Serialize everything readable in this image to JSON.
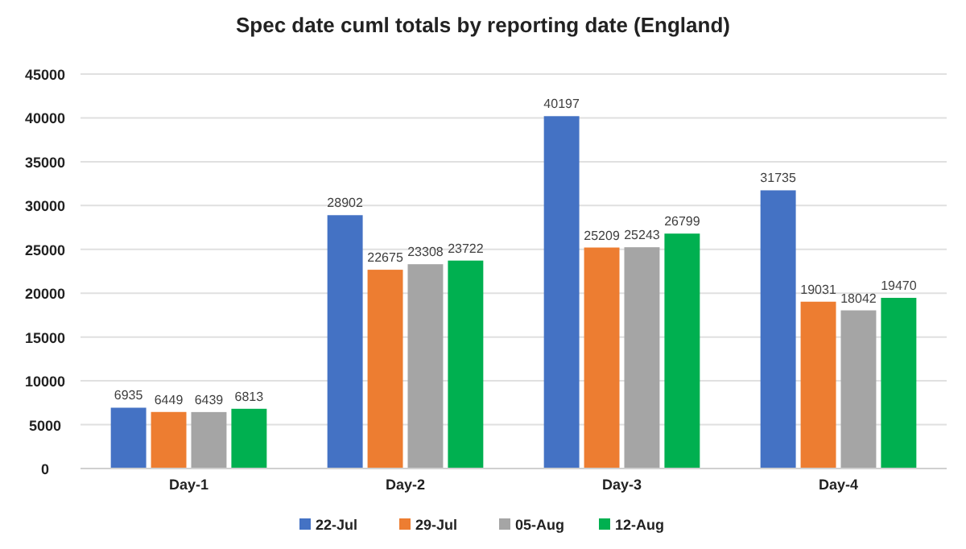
{
  "chart_data": {
    "type": "bar",
    "title": "Spec date cuml totals by reporting date (England)",
    "categories": [
      "Day-1",
      "Day-2",
      "Day-3",
      "Day-4"
    ],
    "series": [
      {
        "name": "22-Jul",
        "color": "#4472c4",
        "values": [
          6935,
          28902,
          40197,
          31735
        ]
      },
      {
        "name": "29-Jul",
        "color": "#ed7d31",
        "values": [
          6449,
          22675,
          25209,
          19031
        ]
      },
      {
        "name": "05-Aug",
        "color": "#a5a5a5",
        "values": [
          6439,
          23308,
          25243,
          18042
        ]
      },
      {
        "name": "12-Aug",
        "color": "#00b050",
        "values": [
          6813,
          23722,
          26799,
          19470
        ]
      }
    ],
    "ylim": [
      0,
      45000
    ],
    "yticks": [
      0,
      5000,
      10000,
      15000,
      20000,
      25000,
      30000,
      35000,
      40000,
      45000
    ],
    "grid": "y",
    "legend": "bottom",
    "data_labels": true
  }
}
